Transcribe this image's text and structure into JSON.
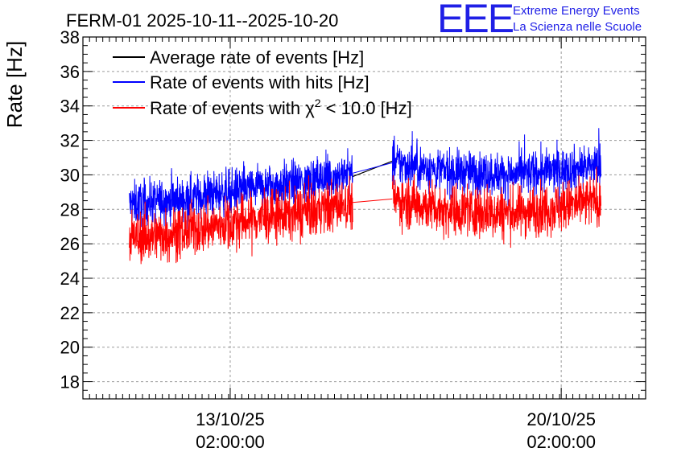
{
  "chart_data": {
    "type": "line",
    "title": "FERM-01 2025-10-11--2025-10-20",
    "logo": {
      "mark": "EEE",
      "line1": "Extreme Energy Events",
      "line2": "La Scienza nelle Scuole"
    },
    "ylabel": "Rate [Hz]",
    "xlabel": "",
    "ylim": [
      17,
      38
    ],
    "yticks": [
      18,
      20,
      22,
      24,
      26,
      28,
      30,
      32,
      34,
      36,
      38
    ],
    "xlim_days": [
      0,
      17
    ],
    "xticks": [
      {
        "day": 4.45,
        "date": "13/10/25",
        "time": "02:00:00"
      },
      {
        "day": 14.45,
        "date": "20/10/25",
        "time": "02:00:00"
      }
    ],
    "legend": {
      "placement": "top-left",
      "entries": [
        {
          "prefix": "Average rate of events [Hz]",
          "sup": "",
          "suffix": ""
        },
        {
          "prefix": "Rate of events with hits [Hz]",
          "sup": "",
          "suffix": ""
        },
        {
          "prefix": "Rate of events with χ",
          "sup": "2",
          "suffix": " < 10.0 [Hz]"
        }
      ]
    },
    "segments": [
      {
        "x_start": 1.4,
        "x_end": 8.15
      },
      {
        "x_start": 9.35,
        "x_end": 15.65
      }
    ],
    "series": [
      {
        "name": "Average rate of events [Hz]",
        "color": "#000000",
        "x": [
          8.15,
          9.35
        ],
        "values": [
          29.9,
          30.8
        ]
      },
      {
        "name": "Rate of events with hits [Hz]",
        "color": "#0000ff",
        "noise": 0.85,
        "x": [
          1.4,
          3.0,
          5.0,
          7.0,
          8.15,
          9.35,
          11.0,
          13.0,
          15.0,
          15.65
        ],
        "values": [
          28.3,
          28.6,
          29.2,
          29.7,
          30.1,
          30.7,
          30.2,
          30.0,
          30.4,
          30.6
        ]
      },
      {
        "name": "Rate of events with χ² < 10.0 [Hz]",
        "color": "#ff0000",
        "noise": 1.0,
        "x": [
          1.4,
          3.0,
          5.0,
          7.0,
          8.15,
          9.35,
          11.0,
          13.0,
          15.0,
          15.65
        ],
        "values": [
          26.3,
          26.7,
          27.4,
          27.9,
          28.4,
          28.6,
          28.0,
          27.8,
          28.3,
          28.6
        ]
      }
    ],
    "grid": true
  }
}
